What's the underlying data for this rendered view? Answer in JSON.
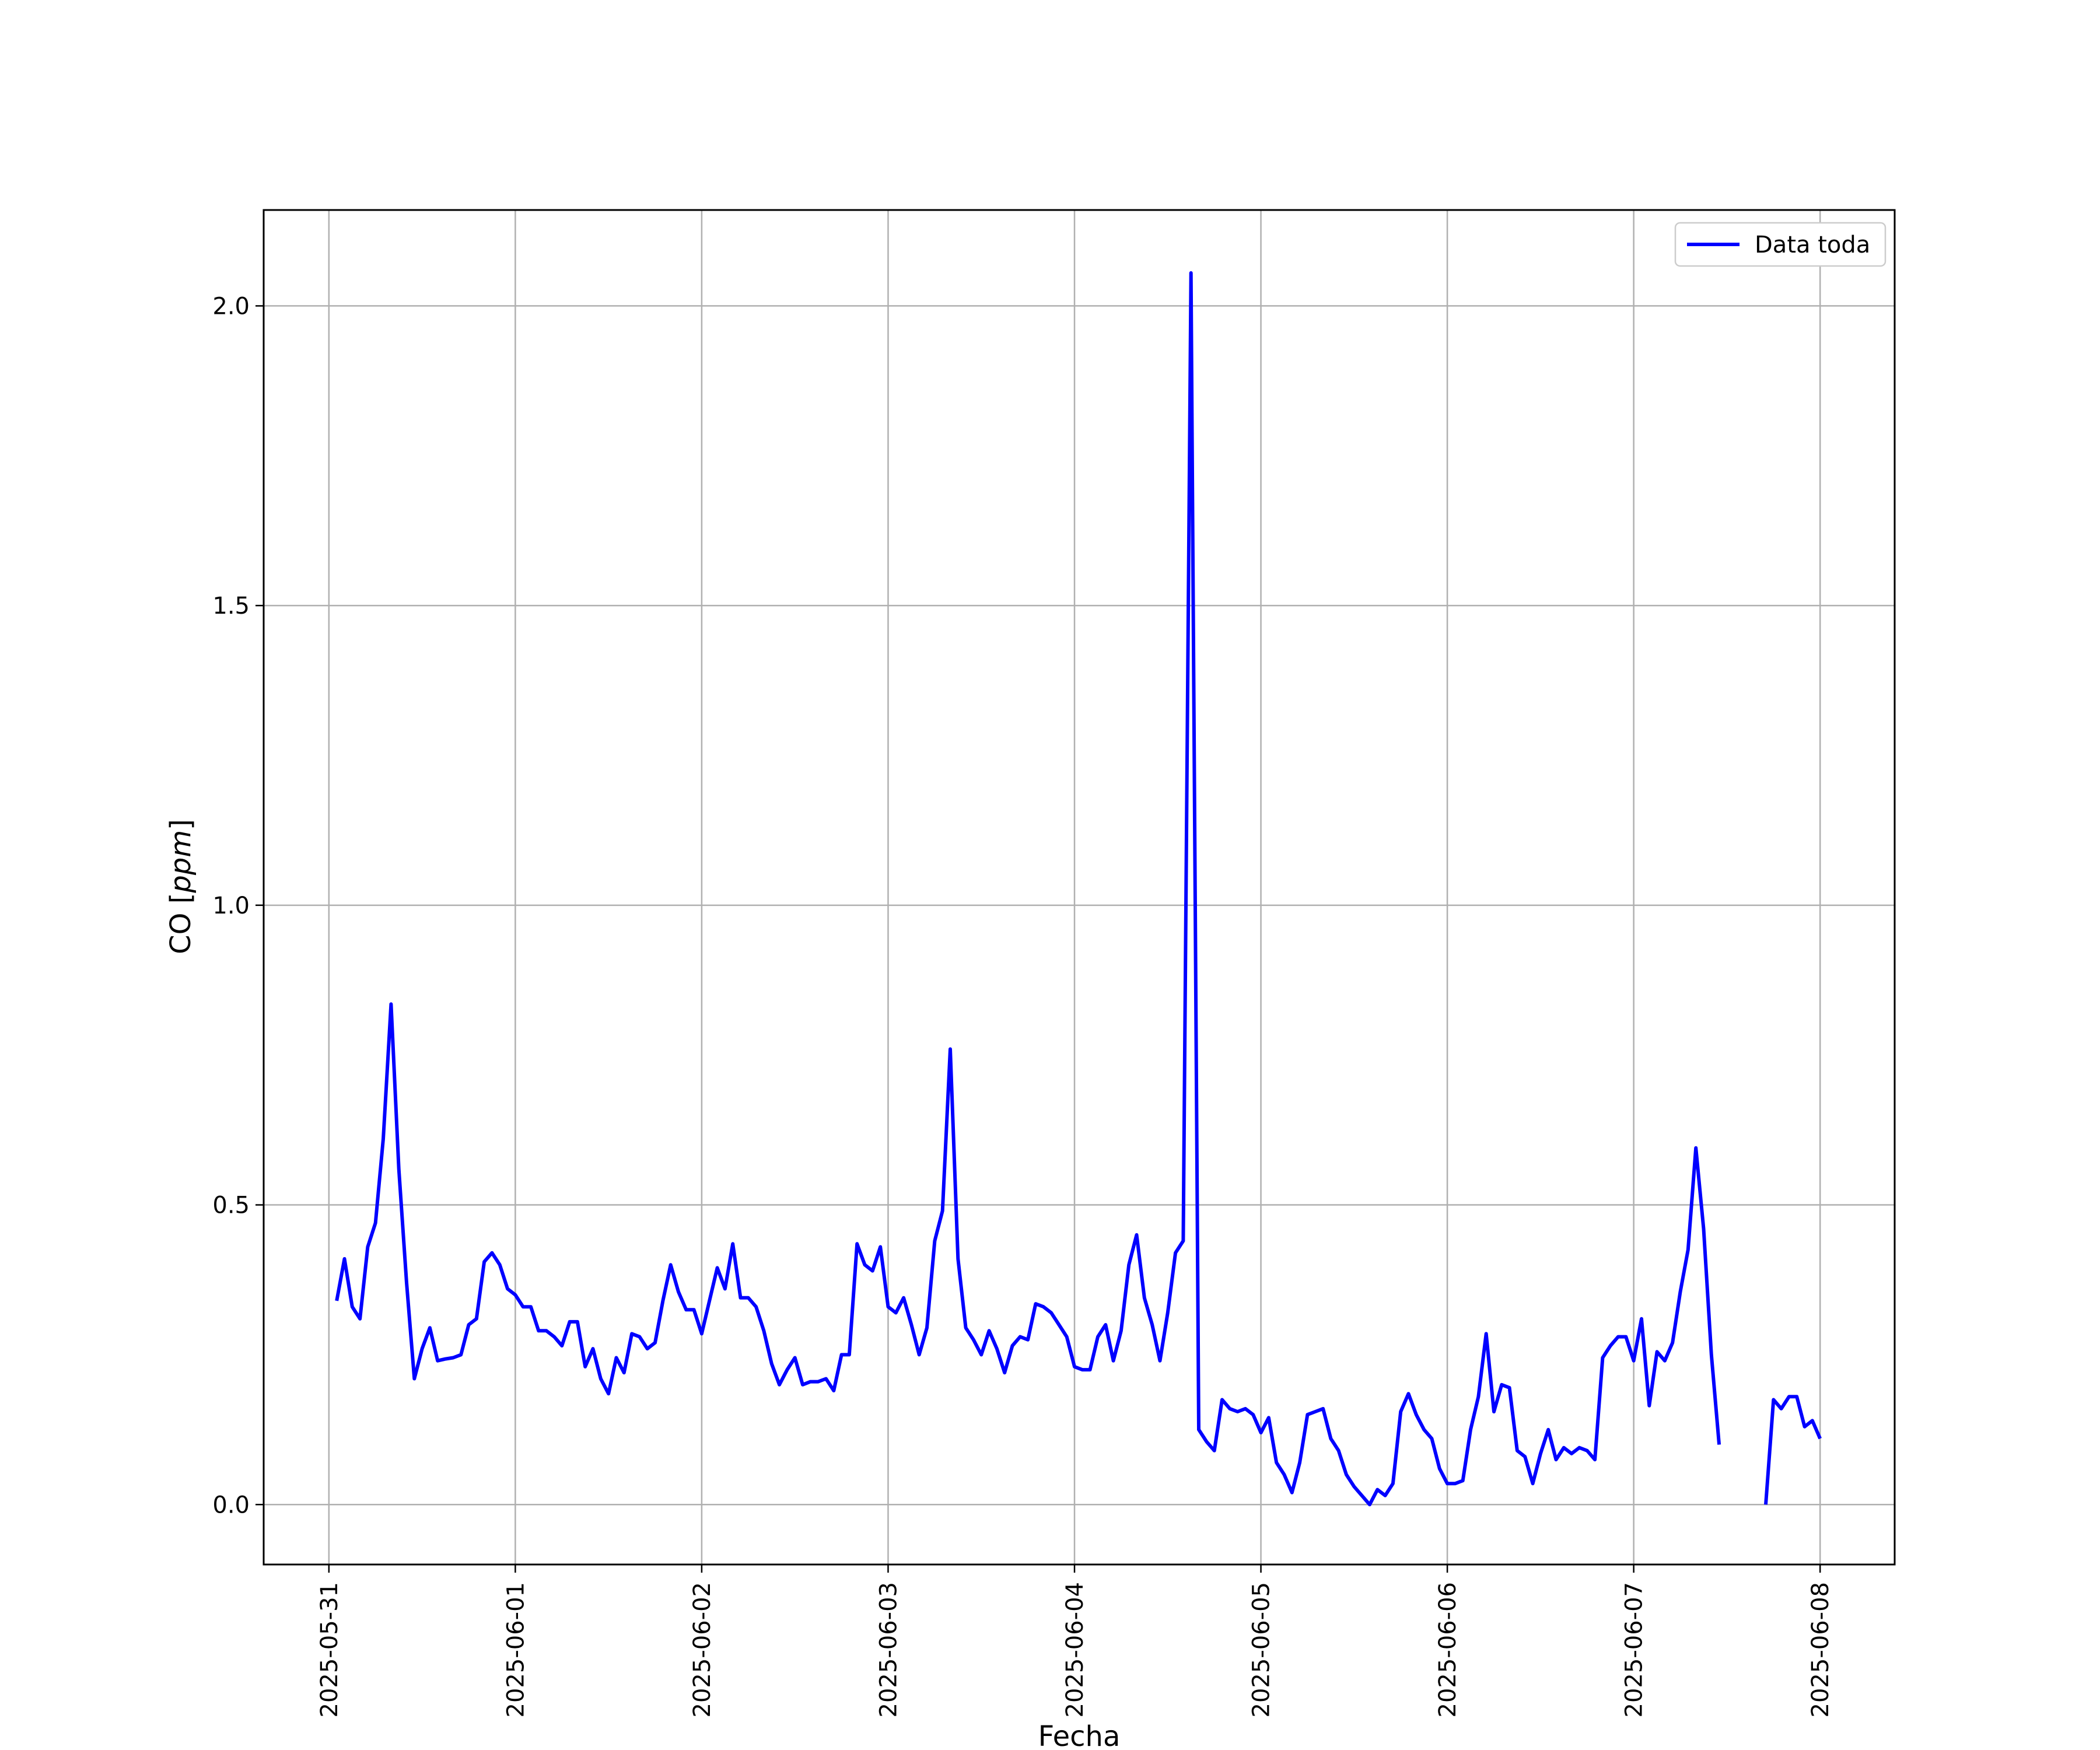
{
  "chart_data": {
    "type": "line",
    "title": "",
    "xlabel": "Fecha",
    "ylabel_prefix": "CO [",
    "ylabel_unit": "ppm",
    "ylabel_suffix": "]",
    "x_start": "2025-05-31",
    "x_ticks": [
      "2025-05-31",
      "2025-06-01",
      "2025-06-02",
      "2025-06-03",
      "2025-06-04",
      "2025-06-05",
      "2025-06-06",
      "2025-06-07",
      "2025-06-08"
    ],
    "y_ticks": [
      "0.0",
      "0.5",
      "1.0",
      "1.5",
      "2.0"
    ],
    "xlim": [
      "2025-05-30T15:36",
      "2025-06-08T09:36"
    ],
    "ylim": [
      -0.1,
      2.16
    ],
    "grid": true,
    "legend_position": "top-right",
    "colors": {
      "series": "#0000ff",
      "grid": "#b0b0b0"
    },
    "series": [
      {
        "name": "Data toda",
        "points": [
          [
            "2025-05-31T01:00",
            0.34
          ],
          [
            "2025-05-31T02:00",
            0.41
          ],
          [
            "2025-05-31T03:00",
            0.33
          ],
          [
            "2025-05-31T04:00",
            0.31
          ],
          [
            "2025-05-31T05:00",
            0.43
          ],
          [
            "2025-05-31T06:00",
            0.47
          ],
          [
            "2025-05-31T07:00",
            0.61
          ],
          [
            "2025-05-31T08:00",
            0.835
          ],
          [
            "2025-05-31T09:00",
            0.56
          ],
          [
            "2025-05-31T10:00",
            0.37
          ],
          [
            "2025-05-31T11:00",
            0.21
          ],
          [
            "2025-05-31T12:00",
            0.26
          ],
          [
            "2025-05-31T13:00",
            0.295
          ],
          [
            "2025-05-31T14:00",
            0.24
          ],
          [
            "2025-05-31T15:00",
            0.243
          ],
          [
            "2025-05-31T16:00",
            0.245
          ],
          [
            "2025-05-31T17:00",
            0.25
          ],
          [
            "2025-05-31T18:00",
            0.3
          ],
          [
            "2025-05-31T19:00",
            0.31
          ],
          [
            "2025-05-31T20:00",
            0.405
          ],
          [
            "2025-05-31T21:00",
            0.42
          ],
          [
            "2025-05-31T22:00",
            0.4
          ],
          [
            "2025-05-31T23:00",
            0.36
          ],
          [
            "2025-06-01T00:00",
            0.35
          ],
          [
            "2025-06-01T01:00",
            0.33
          ],
          [
            "2025-06-01T02:00",
            0.33
          ],
          [
            "2025-06-01T03:00",
            0.29
          ],
          [
            "2025-06-01T04:00",
            0.29
          ],
          [
            "2025-06-01T05:00",
            0.28
          ],
          [
            "2025-06-01T06:00",
            0.265
          ],
          [
            "2025-06-01T07:00",
            0.305
          ],
          [
            "2025-06-01T08:00",
            0.305
          ],
          [
            "2025-06-01T09:00",
            0.23
          ],
          [
            "2025-06-01T10:00",
            0.26
          ],
          [
            "2025-06-01T11:00",
            0.21
          ],
          [
            "2025-06-01T12:00",
            0.185
          ],
          [
            "2025-06-01T13:00",
            0.245
          ],
          [
            "2025-06-01T14:00",
            0.22
          ],
          [
            "2025-06-01T15:00",
            0.285
          ],
          [
            "2025-06-01T16:00",
            0.28
          ],
          [
            "2025-06-01T17:00",
            0.26
          ],
          [
            "2025-06-01T18:00",
            0.27
          ],
          [
            "2025-06-01T19:00",
            0.34
          ],
          [
            "2025-06-01T20:00",
            0.4
          ],
          [
            "2025-06-01T21:00",
            0.355
          ],
          [
            "2025-06-01T22:00",
            0.325
          ],
          [
            "2025-06-01T23:00",
            0.325
          ],
          [
            "2025-06-02T00:00",
            0.285
          ],
          [
            "2025-06-02T01:00",
            0.34
          ],
          [
            "2025-06-02T02:00",
            0.395
          ],
          [
            "2025-06-02T03:00",
            0.36
          ],
          [
            "2025-06-02T04:00",
            0.435
          ],
          [
            "2025-06-02T05:00",
            0.345
          ],
          [
            "2025-06-02T06:00",
            0.345
          ],
          [
            "2025-06-02T07:00",
            0.33
          ],
          [
            "2025-06-02T08:00",
            0.29
          ],
          [
            "2025-06-02T09:00",
            0.235
          ],
          [
            "2025-06-02T10:00",
            0.2
          ],
          [
            "2025-06-02T11:00",
            0.225
          ],
          [
            "2025-06-02T12:00",
            0.245
          ],
          [
            "2025-06-02T13:00",
            0.2
          ],
          [
            "2025-06-02T14:00",
            0.205
          ],
          [
            "2025-06-02T15:00",
            0.205
          ],
          [
            "2025-06-02T16:00",
            0.21
          ],
          [
            "2025-06-02T17:00",
            0.19
          ],
          [
            "2025-06-02T18:00",
            0.25
          ],
          [
            "2025-06-02T19:00",
            0.25
          ],
          [
            "2025-06-02T20:00",
            0.435
          ],
          [
            "2025-06-02T21:00",
            0.4
          ],
          [
            "2025-06-02T22:00",
            0.39
          ],
          [
            "2025-06-02T23:00",
            0.43
          ],
          [
            "2025-06-03T00:00",
            0.33
          ],
          [
            "2025-06-03T01:00",
            0.32
          ],
          [
            "2025-06-03T02:00",
            0.345
          ],
          [
            "2025-06-03T03:00",
            0.3
          ],
          [
            "2025-06-03T04:00",
            0.25
          ],
          [
            "2025-06-03T05:00",
            0.295
          ],
          [
            "2025-06-03T06:00",
            0.44
          ],
          [
            "2025-06-03T07:00",
            0.49
          ],
          [
            "2025-06-03T08:00",
            0.76
          ],
          [
            "2025-06-03T09:00",
            0.41
          ],
          [
            "2025-06-03T10:00",
            0.295
          ],
          [
            "2025-06-03T11:00",
            0.275
          ],
          [
            "2025-06-03T12:00",
            0.25
          ],
          [
            "2025-06-03T13:00",
            0.29
          ],
          [
            "2025-06-03T14:00",
            0.26
          ],
          [
            "2025-06-03T15:00",
            0.22
          ],
          [
            "2025-06-03T16:00",
            0.265
          ],
          [
            "2025-06-03T17:00",
            0.28
          ],
          [
            "2025-06-03T18:00",
            0.275
          ],
          [
            "2025-06-03T19:00",
            0.335
          ],
          [
            "2025-06-03T20:00",
            0.33
          ],
          [
            "2025-06-03T21:00",
            0.32
          ],
          [
            "2025-06-03T22:00",
            0.3
          ],
          [
            "2025-06-03T23:00",
            0.28
          ],
          [
            "2025-06-04T00:00",
            0.23
          ],
          [
            "2025-06-04T01:00",
            0.225
          ],
          [
            "2025-06-04T02:00",
            0.225
          ],
          [
            "2025-06-04T03:00",
            0.28
          ],
          [
            "2025-06-04T04:00",
            0.3
          ],
          [
            "2025-06-04T05:00",
            0.24
          ],
          [
            "2025-06-04T06:00",
            0.29
          ],
          [
            "2025-06-04T07:00",
            0.4
          ],
          [
            "2025-06-04T08:00",
            0.45
          ],
          [
            "2025-06-04T09:00",
            0.345
          ],
          [
            "2025-06-04T10:00",
            0.3
          ],
          [
            "2025-06-04T11:00",
            0.24
          ],
          [
            "2025-06-04T12:00",
            0.32
          ],
          [
            "2025-06-04T13:00",
            0.42
          ],
          [
            "2025-06-04T14:00",
            0.44
          ],
          [
            "2025-06-04T15:00",
            2.055
          ],
          [
            "2025-06-04T16:00",
            0.125
          ],
          [
            "2025-06-04T17:00",
            0.105
          ],
          [
            "2025-06-04T18:00",
            0.09
          ],
          [
            "2025-06-04T19:00",
            0.175
          ],
          [
            "2025-06-04T20:00",
            0.16
          ],
          [
            "2025-06-04T21:00",
            0.155
          ],
          [
            "2025-06-04T22:00",
            0.16
          ],
          [
            "2025-06-04T23:00",
            0.15
          ],
          [
            "2025-06-05T00:00",
            0.12
          ],
          [
            "2025-06-05T01:00",
            0.145
          ],
          [
            "2025-06-05T02:00",
            0.07
          ],
          [
            "2025-06-05T03:00",
            0.05
          ],
          [
            "2025-06-05T04:00",
            0.02
          ],
          [
            "2025-06-05T05:00",
            0.07
          ],
          [
            "2025-06-05T06:00",
            0.15
          ],
          [
            "2025-06-05T07:00",
            0.155
          ],
          [
            "2025-06-05T08:00",
            0.16
          ],
          [
            "2025-06-05T09:00",
            0.11
          ],
          [
            "2025-06-05T10:00",
            0.09
          ],
          [
            "2025-06-05T11:00",
            0.05
          ],
          [
            "2025-06-05T12:00",
            0.03
          ],
          [
            "2025-06-05T13:00",
            0.015
          ],
          [
            "2025-06-05T14:00",
            0.0
          ],
          [
            "2025-06-05T15:00",
            0.025
          ],
          [
            "2025-06-05T16:00",
            0.015
          ],
          [
            "2025-06-05T17:00",
            0.035
          ],
          [
            "2025-06-05T18:00",
            0.155
          ],
          [
            "2025-06-05T19:00",
            0.185
          ],
          [
            "2025-06-05T20:00",
            0.15
          ],
          [
            "2025-06-05T21:00",
            0.125
          ],
          [
            "2025-06-05T22:00",
            0.11
          ],
          [
            "2025-06-05T23:00",
            0.06
          ],
          [
            "2025-06-06T00:00",
            0.035
          ],
          [
            "2025-06-06T01:00",
            0.035
          ],
          [
            "2025-06-06T02:00",
            0.04
          ],
          [
            "2025-06-06T03:00",
            0.125
          ],
          [
            "2025-06-06T04:00",
            0.18
          ],
          [
            "2025-06-06T05:00",
            0.285
          ],
          [
            "2025-06-06T06:00",
            0.155
          ],
          [
            "2025-06-06T07:00",
            0.2
          ],
          [
            "2025-06-06T08:00",
            0.195
          ],
          [
            "2025-06-06T09:00",
            0.09
          ],
          [
            "2025-06-06T10:00",
            0.08
          ],
          [
            "2025-06-06T11:00",
            0.035
          ],
          [
            "2025-06-06T12:00",
            0.085
          ],
          [
            "2025-06-06T13:00",
            0.125
          ],
          [
            "2025-06-06T14:00",
            0.075
          ],
          [
            "2025-06-06T15:00",
            0.095
          ],
          [
            "2025-06-06T16:00",
            0.085
          ],
          [
            "2025-06-06T17:00",
            0.095
          ],
          [
            "2025-06-06T18:00",
            0.09
          ],
          [
            "2025-06-06T19:00",
            0.075
          ],
          [
            "2025-06-06T20:00",
            0.245
          ],
          [
            "2025-06-06T21:00",
            0.265
          ],
          [
            "2025-06-06T22:00",
            0.28
          ],
          [
            "2025-06-06T23:00",
            0.28
          ],
          [
            "2025-06-07T00:00",
            0.24
          ],
          [
            "2025-06-07T01:00",
            0.31
          ],
          [
            "2025-06-07T02:00",
            0.165
          ],
          [
            "2025-06-07T03:00",
            0.255
          ],
          [
            "2025-06-07T04:00",
            0.24
          ],
          [
            "2025-06-07T05:00",
            0.27
          ],
          [
            "2025-06-07T06:00",
            0.355
          ],
          [
            "2025-06-07T07:00",
            0.425
          ],
          [
            "2025-06-07T08:00",
            0.595
          ],
          [
            "2025-06-07T09:00",
            0.46
          ],
          [
            "2025-06-07T10:00",
            0.25
          ],
          [
            "2025-06-07T11:00",
            0.1
          ],
          null,
          [
            "2025-06-07T17:00",
            0.0
          ],
          [
            "2025-06-07T18:00",
            0.175
          ],
          [
            "2025-06-07T19:00",
            0.16
          ],
          [
            "2025-06-07T20:00",
            0.18
          ],
          [
            "2025-06-07T21:00",
            0.18
          ],
          [
            "2025-06-07T22:00",
            0.13
          ],
          [
            "2025-06-07T23:00",
            0.14
          ],
          [
            "2025-06-08T00:00",
            0.11
          ]
        ]
      }
    ]
  }
}
